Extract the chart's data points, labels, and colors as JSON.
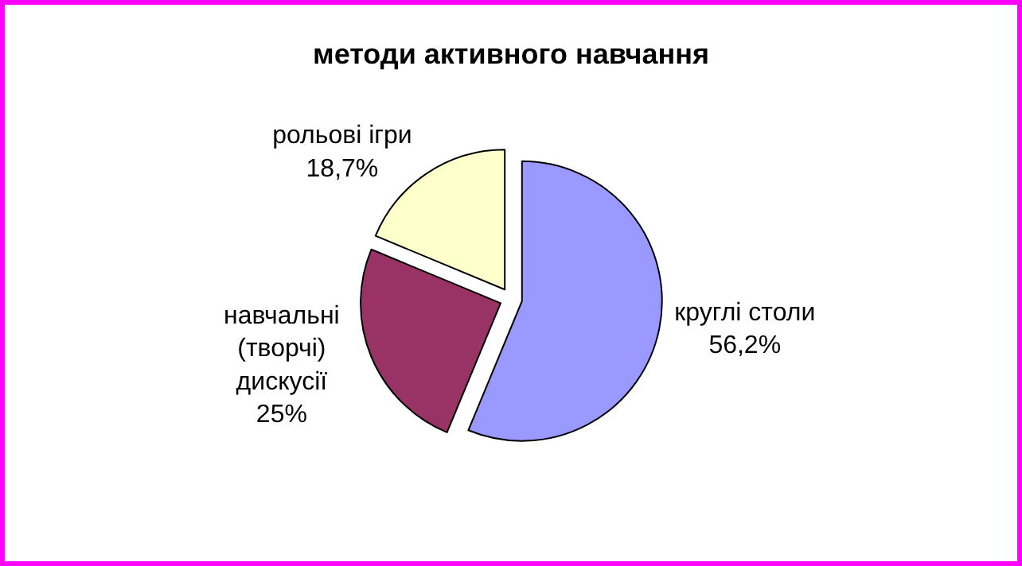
{
  "chart_data": {
    "type": "pie",
    "title": "методи активного навчання",
    "categories": [
      "круглі столи",
      "навчальні (творчі) дискусії",
      "рольові ігри"
    ],
    "values": [
      56.2,
      25,
      18.7
    ],
    "value_labels": [
      "56,2%",
      "25%",
      "18,7%"
    ],
    "colors": [
      "#9999ff",
      "#993366",
      "#ffffcc"
    ],
    "legend": false
  }
}
